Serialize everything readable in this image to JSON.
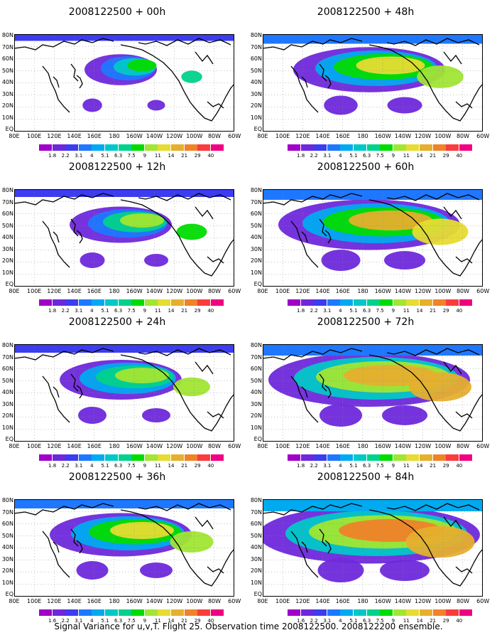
{
  "figure": {
    "caption": "Signal Variance for u,v,T. Flight 25. Observation time 2008122500. 2008122200 ensemble."
  },
  "lat_labels": [
    "80N",
    "70N",
    "60N",
    "50N",
    "40N",
    "30N",
    "20N",
    "10N",
    "EQ"
  ],
  "lon_labels": [
    "80E",
    "100E",
    "120E",
    "140E",
    "160E",
    "180",
    "160W",
    "140W",
    "120W",
    "100W",
    "80W",
    "60W"
  ],
  "colorbar": {
    "levels": [
      "1.8",
      "2.2",
      "3.1",
      "4",
      "5.1",
      "6.3",
      "7.5",
      "9",
      "11",
      "14",
      "21",
      "29",
      "40"
    ],
    "levels_36h": [
      "1.6",
      "2.2",
      "3.1",
      "4",
      "5.1",
      "6.3",
      "7.5",
      "9",
      "11",
      "14",
      "21",
      "29",
      "40"
    ],
    "levels_84h": [
      "1.6",
      "2.2",
      "3.1",
      "4",
      "5.1",
      "6.3",
      "7.5",
      "9",
      "11",
      "14",
      "21",
      "29",
      "40"
    ],
    "colors": [
      "#a000c8",
      "#6e28dc",
      "#3c3cf0",
      "#1e78ff",
      "#00aaf0",
      "#00c8c8",
      "#00d28c",
      "#00dc00",
      "#a0e632",
      "#e6dc32",
      "#e6af2d",
      "#f08228",
      "#fa3c3c",
      "#f00082"
    ]
  },
  "panels": [
    {
      "title": "2008122500 + 00h",
      "intensity": 0.15
    },
    {
      "title": "2008122500 + 48h",
      "intensity": 0.55
    },
    {
      "title": "2008122500 + 12h",
      "intensity": 0.3
    },
    {
      "title": "2008122500 + 60h",
      "intensity": 0.7
    },
    {
      "title": "2008122500 + 24h",
      "intensity": 0.4
    },
    {
      "title": "2008122500 + 72h",
      "intensity": 0.8
    },
    {
      "title": "2008122500 + 36h",
      "intensity": 0.5
    },
    {
      "title": "2008122500 + 84h",
      "intensity": 0.9
    }
  ]
}
